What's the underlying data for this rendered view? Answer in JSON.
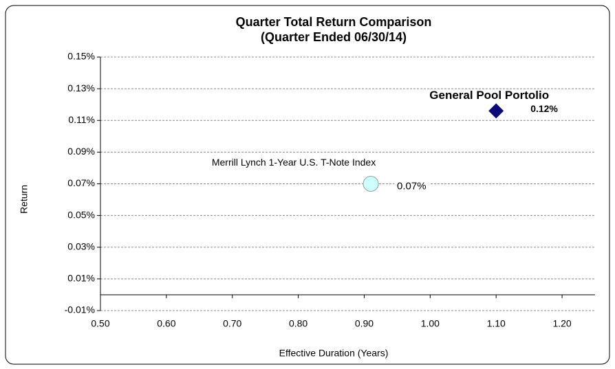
{
  "chart_data": {
    "type": "scatter",
    "title": "Quarter Total Return Comparison",
    "subtitle": "(Quarter Ended 06/30/14)",
    "xlabel": "Effective Duration (Years)",
    "ylabel": "Return",
    "xlim": [
      0.5,
      1.25
    ],
    "ylim": [
      -0.01,
      0.15
    ],
    "xticks": [
      {
        "value": 0.5,
        "label": "0.50"
      },
      {
        "value": 0.6,
        "label": "0.60"
      },
      {
        "value": 0.7,
        "label": "0.70"
      },
      {
        "value": 0.8,
        "label": "0.80"
      },
      {
        "value": 0.9,
        "label": "0.90"
      },
      {
        "value": 1.0,
        "label": "1.00"
      },
      {
        "value": 1.1,
        "label": "1.10"
      },
      {
        "value": 1.2,
        "label": "1.20"
      }
    ],
    "yticks": [
      {
        "value": -0.01,
        "label": "-0.01%"
      },
      {
        "value": 0.01,
        "label": "0.01%"
      },
      {
        "value": 0.03,
        "label": "0.03%"
      },
      {
        "value": 0.05,
        "label": "0.05%"
      },
      {
        "value": 0.07,
        "label": "0.07%"
      },
      {
        "value": 0.09,
        "label": "0.09%"
      },
      {
        "value": 0.11,
        "label": "0.11%"
      },
      {
        "value": 0.13,
        "label": "0.13%"
      },
      {
        "value": 0.15,
        "label": "0.15%"
      }
    ],
    "grid": true,
    "series": [
      {
        "name": "General Pool Portolio",
        "color": "#0a0a78",
        "marker": "diamond",
        "x": [
          1.1
        ],
        "values": [
          0.116
        ],
        "value_labels": [
          "0.12%"
        ]
      },
      {
        "name": "Merrill Lynch 1-Year U.S. T-Note Index",
        "color": "#ccffff",
        "marker": "circle",
        "x": [
          0.91
        ],
        "values": [
          0.07
        ],
        "value_labels": [
          "0.07%"
        ]
      }
    ]
  }
}
